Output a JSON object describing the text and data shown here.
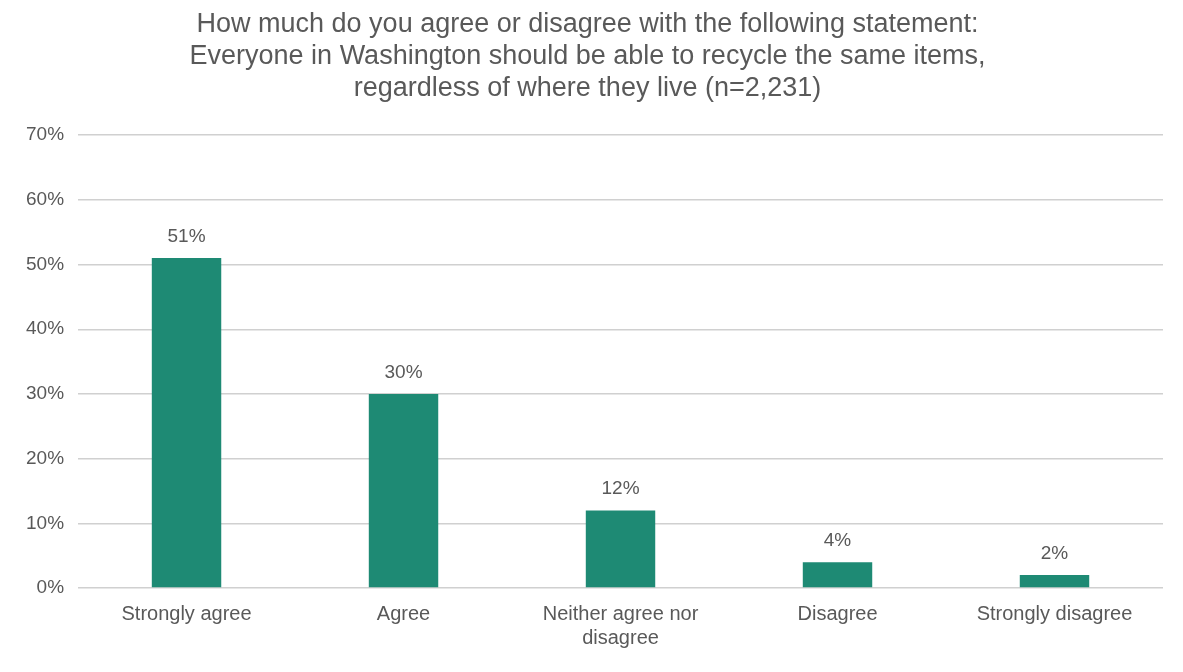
{
  "chart_data": {
    "type": "bar",
    "title": "How much do you agree or disagree with the following statement: Everyone in Washington should be able to recycle the same items, regardless of where they live (n=2,231)",
    "categories": [
      "Strongly agree",
      "Agree",
      "Neither agree nor disagree",
      "Disagree",
      "Strongly disagree"
    ],
    "values": [
      51,
      30,
      12,
      4,
      2
    ],
    "value_labels": [
      "51%",
      "30%",
      "12%",
      "4%",
      "2%"
    ],
    "color": "#1e8a74",
    "ylim": [
      0,
      70
    ],
    "yticks": [
      {
        "value": 0,
        "label": "0%"
      },
      {
        "value": 10,
        "label": "10%"
      },
      {
        "value": 20,
        "label": "20%"
      },
      {
        "value": 30,
        "label": "30%"
      },
      {
        "value": 40,
        "label": "40%"
      },
      {
        "value": 50,
        "label": "50%"
      },
      {
        "value": 60,
        "label": "60%"
      },
      {
        "value": 70,
        "label": "70%"
      }
    ],
    "grid": "y"
  }
}
